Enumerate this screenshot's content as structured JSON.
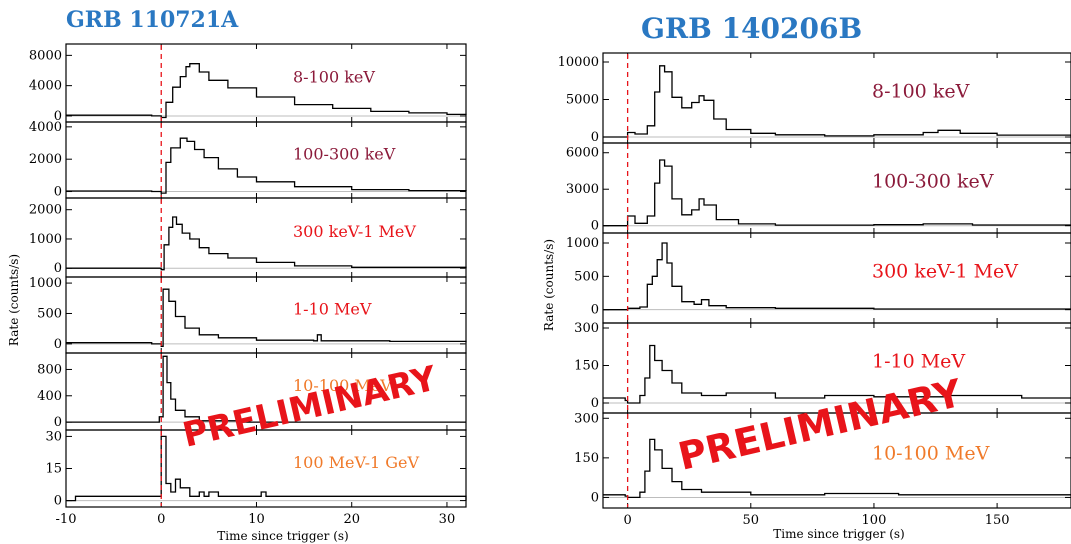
{
  "chart_data": [
    {
      "type": "line",
      "title": "GRB 110721A",
      "xlabel": "Time since trigger (s)",
      "ylabel": "Rate (counts/s)",
      "xlim": [
        -10,
        32
      ],
      "x_ticks": [
        -10,
        0,
        10,
        20,
        30
      ],
      "trigger_line_x": 0,
      "watermark": "PRELIMINARY",
      "title_color": "#2a78c2",
      "panels": [
        {
          "name": "8-100 keV",
          "label_color": "#8b1a3a",
          "ylim": [
            -800,
            9500
          ],
          "y_ticks": [
            0,
            4000,
            8000
          ],
          "points": [
            [
              -10,
              100
            ],
            [
              -1,
              0
            ],
            [
              0,
              -200
            ],
            [
              0.5,
              1800
            ],
            [
              1.2,
              3800
            ],
            [
              2,
              5200
            ],
            [
              2.6,
              6500
            ],
            [
              3,
              6900
            ],
            [
              4,
              5800
            ],
            [
              5,
              4700
            ],
            [
              7,
              3700
            ],
            [
              10,
              2500
            ],
            [
              14,
              1500
            ],
            [
              18,
              1000
            ],
            [
              22,
              600
            ],
            [
              26,
              400
            ],
            [
              30,
              200
            ],
            [
              32,
              150
            ]
          ]
        },
        {
          "name": "100-300 keV",
          "label_color": "#8b1a3a",
          "ylim": [
            -400,
            4300
          ],
          "y_ticks": [
            0,
            2000,
            4000
          ],
          "points": [
            [
              -10,
              30
            ],
            [
              -1,
              0
            ],
            [
              0,
              -100
            ],
            [
              0.5,
              1800
            ],
            [
              1,
              2700
            ],
            [
              2,
              3300
            ],
            [
              2.7,
              3100
            ],
            [
              3.5,
              2600
            ],
            [
              4.5,
              2100
            ],
            [
              6,
              1400
            ],
            [
              8,
              900
            ],
            [
              10,
              600
            ],
            [
              14,
              300
            ],
            [
              20,
              120
            ],
            [
              26,
              60
            ],
            [
              32,
              30
            ]
          ]
        },
        {
          "name": "300 keV-1 MeV",
          "label_color": "#e8141a",
          "ylim": [
            -300,
            2400
          ],
          "y_ticks": [
            0,
            1000,
            2000
          ],
          "points": [
            [
              -10,
              0
            ],
            [
              -1,
              0
            ],
            [
              0,
              -50
            ],
            [
              0.3,
              800
            ],
            [
              0.8,
              1400
            ],
            [
              1.2,
              1750
            ],
            [
              1.6,
              1500
            ],
            [
              2.2,
              1200
            ],
            [
              3,
              1000
            ],
            [
              4,
              700
            ],
            [
              5,
              500
            ],
            [
              7,
              350
            ],
            [
              10,
              200
            ],
            [
              14,
              80
            ],
            [
              20,
              30
            ],
            [
              32,
              0
            ]
          ]
        },
        {
          "name": "1-10 MeV",
          "label_color": "#e8141a",
          "ylim": [
            -150,
            1100
          ],
          "y_ticks": [
            0,
            500,
            1000
          ],
          "points": [
            [
              -10,
              20
            ],
            [
              -1,
              0
            ],
            [
              0,
              -40
            ],
            [
              0.2,
              900
            ],
            [
              0.8,
              700
            ],
            [
              1.5,
              450
            ],
            [
              2.5,
              260
            ],
            [
              4,
              150
            ],
            [
              6,
              100
            ],
            [
              10,
              60
            ],
            [
              16,
              50
            ],
            [
              16.4,
              150
            ],
            [
              16.8,
              50
            ],
            [
              24,
              40
            ],
            [
              32,
              30
            ]
          ]
        },
        {
          "name": "10-100 MeV",
          "label_color": "#f07a2a",
          "ylim": [
            -120,
            1050
          ],
          "y_ticks": [
            0,
            400,
            800
          ],
          "points": [
            [
              -10,
              0
            ],
            [
              -0.5,
              0
            ],
            [
              -0.2,
              80
            ],
            [
              0.2,
              1000
            ],
            [
              0.6,
              600
            ],
            [
              1,
              350
            ],
            [
              1.5,
              180
            ],
            [
              2.5,
              80
            ],
            [
              4,
              20
            ],
            [
              8,
              0
            ],
            [
              32,
              0
            ]
          ]
        },
        {
          "name": "100 MeV-1 GeV",
          "label_color": "#f07a2a",
          "ylim": [
            -3,
            33
          ],
          "y_ticks": [
            0,
            15,
            30
          ],
          "points": [
            [
              -10,
              0
            ],
            [
              -9,
              2
            ],
            [
              -6,
              2
            ],
            [
              -2,
              2
            ],
            [
              -1,
              2
            ],
            [
              0,
              30
            ],
            [
              0.5,
              8
            ],
            [
              1,
              4
            ],
            [
              1.5,
              10
            ],
            [
              2,
              6
            ],
            [
              3,
              2
            ],
            [
              4,
              4
            ],
            [
              4.5,
              2
            ],
            [
              5,
              4
            ],
            [
              6,
              2
            ],
            [
              8,
              2
            ],
            [
              10.5,
              4
            ],
            [
              11,
              2
            ],
            [
              16,
              2
            ],
            [
              22,
              2
            ],
            [
              27,
              2
            ],
            [
              32,
              0
            ]
          ]
        }
      ]
    },
    {
      "type": "line",
      "title": "GRB 140206B",
      "xlabel": "Time since trigger (s)",
      "ylabel": "Rate (counts/s)",
      "xlim": [
        -10,
        180
      ],
      "x_ticks": [
        0,
        50,
        100,
        150
      ],
      "trigger_line_x": 0,
      "watermark": "PRELIMINARY",
      "title_color": "#2a78c2",
      "panels": [
        {
          "name": "8-100 keV",
          "label_color": "#8b1a3a",
          "ylim": [
            -800,
            11200
          ],
          "y_ticks": [
            0,
            5000,
            10000
          ],
          "points": [
            [
              -10,
              0
            ],
            [
              -1,
              0
            ],
            [
              0,
              600
            ],
            [
              3,
              400
            ],
            [
              8,
              1500
            ],
            [
              11,
              6000
            ],
            [
              13,
              9500
            ],
            [
              15,
              8700
            ],
            [
              18,
              5300
            ],
            [
              22,
              3900
            ],
            [
              26,
              4600
            ],
            [
              29,
              5500
            ],
            [
              31,
              4900
            ],
            [
              35,
              2400
            ],
            [
              40,
              1000
            ],
            [
              50,
              500
            ],
            [
              60,
              300
            ],
            [
              80,
              150
            ],
            [
              100,
              300
            ],
            [
              120,
              600
            ],
            [
              126,
              900
            ],
            [
              135,
              500
            ],
            [
              150,
              250
            ],
            [
              180,
              100
            ]
          ]
        },
        {
          "name": "100-300 keV",
          "label_color": "#8b1a3a",
          "ylim": [
            -600,
            6800
          ],
          "y_ticks": [
            0,
            3000,
            6000
          ],
          "points": [
            [
              -10,
              0
            ],
            [
              -1,
              0
            ],
            [
              0,
              800
            ],
            [
              3,
              200
            ],
            [
              8,
              800
            ],
            [
              11,
              3500
            ],
            [
              13,
              5400
            ],
            [
              15,
              4900
            ],
            [
              18,
              2200
            ],
            [
              22,
              900
            ],
            [
              26,
              1300
            ],
            [
              29,
              2200
            ],
            [
              31,
              1700
            ],
            [
              36,
              500
            ],
            [
              45,
              150
            ],
            [
              60,
              50
            ],
            [
              100,
              80
            ],
            [
              120,
              150
            ],
            [
              140,
              60
            ],
            [
              180,
              20
            ]
          ]
        },
        {
          "name": "300 keV-1 MeV",
          "label_color": "#e8141a",
          "ylim": [
            -200,
            1150
          ],
          "y_ticks": [
            0,
            500,
            1000
          ],
          "points": [
            [
              -10,
              0
            ],
            [
              -1,
              0
            ],
            [
              0,
              20
            ],
            [
              5,
              40
            ],
            [
              8,
              380
            ],
            [
              10,
              500
            ],
            [
              12,
              750
            ],
            [
              14,
              1000
            ],
            [
              16,
              700
            ],
            [
              18,
              350
            ],
            [
              22,
              120
            ],
            [
              27,
              80
            ],
            [
              30,
              150
            ],
            [
              33,
              60
            ],
            [
              40,
              30
            ],
            [
              60,
              20
            ],
            [
              100,
              10
            ],
            [
              180,
              0
            ]
          ]
        },
        {
          "name": "1-10 MeV",
          "label_color": "#e8141a",
          "ylim": [
            -40,
            320
          ],
          "y_ticks": [
            0,
            150,
            300
          ],
          "points": [
            [
              -10,
              20
            ],
            [
              -1,
              10
            ],
            [
              0,
              0
            ],
            [
              5,
              30
            ],
            [
              7,
              100
            ],
            [
              9,
              230
            ],
            [
              11,
              170
            ],
            [
              14,
              130
            ],
            [
              18,
              80
            ],
            [
              22,
              40
            ],
            [
              30,
              30
            ],
            [
              40,
              40
            ],
            [
              60,
              20
            ],
            [
              80,
              30
            ],
            [
              100,
              25
            ],
            [
              130,
              30
            ],
            [
              160,
              20
            ],
            [
              180,
              20
            ]
          ]
        },
        {
          "name": "10-100 MeV",
          "label_color": "#f07a2a",
          "ylim": [
            -40,
            320
          ],
          "y_ticks": [
            0,
            150,
            300
          ],
          "points": [
            [
              -10,
              10
            ],
            [
              -1,
              5
            ],
            [
              0,
              0
            ],
            [
              5,
              20
            ],
            [
              7,
              100
            ],
            [
              9,
              220
            ],
            [
              11,
              180
            ],
            [
              14,
              110
            ],
            [
              18,
              60
            ],
            [
              22,
              30
            ],
            [
              30,
              20
            ],
            [
              50,
              10
            ],
            [
              80,
              15
            ],
            [
              110,
              10
            ],
            [
              150,
              10
            ],
            [
              180,
              10
            ]
          ]
        }
      ]
    }
  ]
}
